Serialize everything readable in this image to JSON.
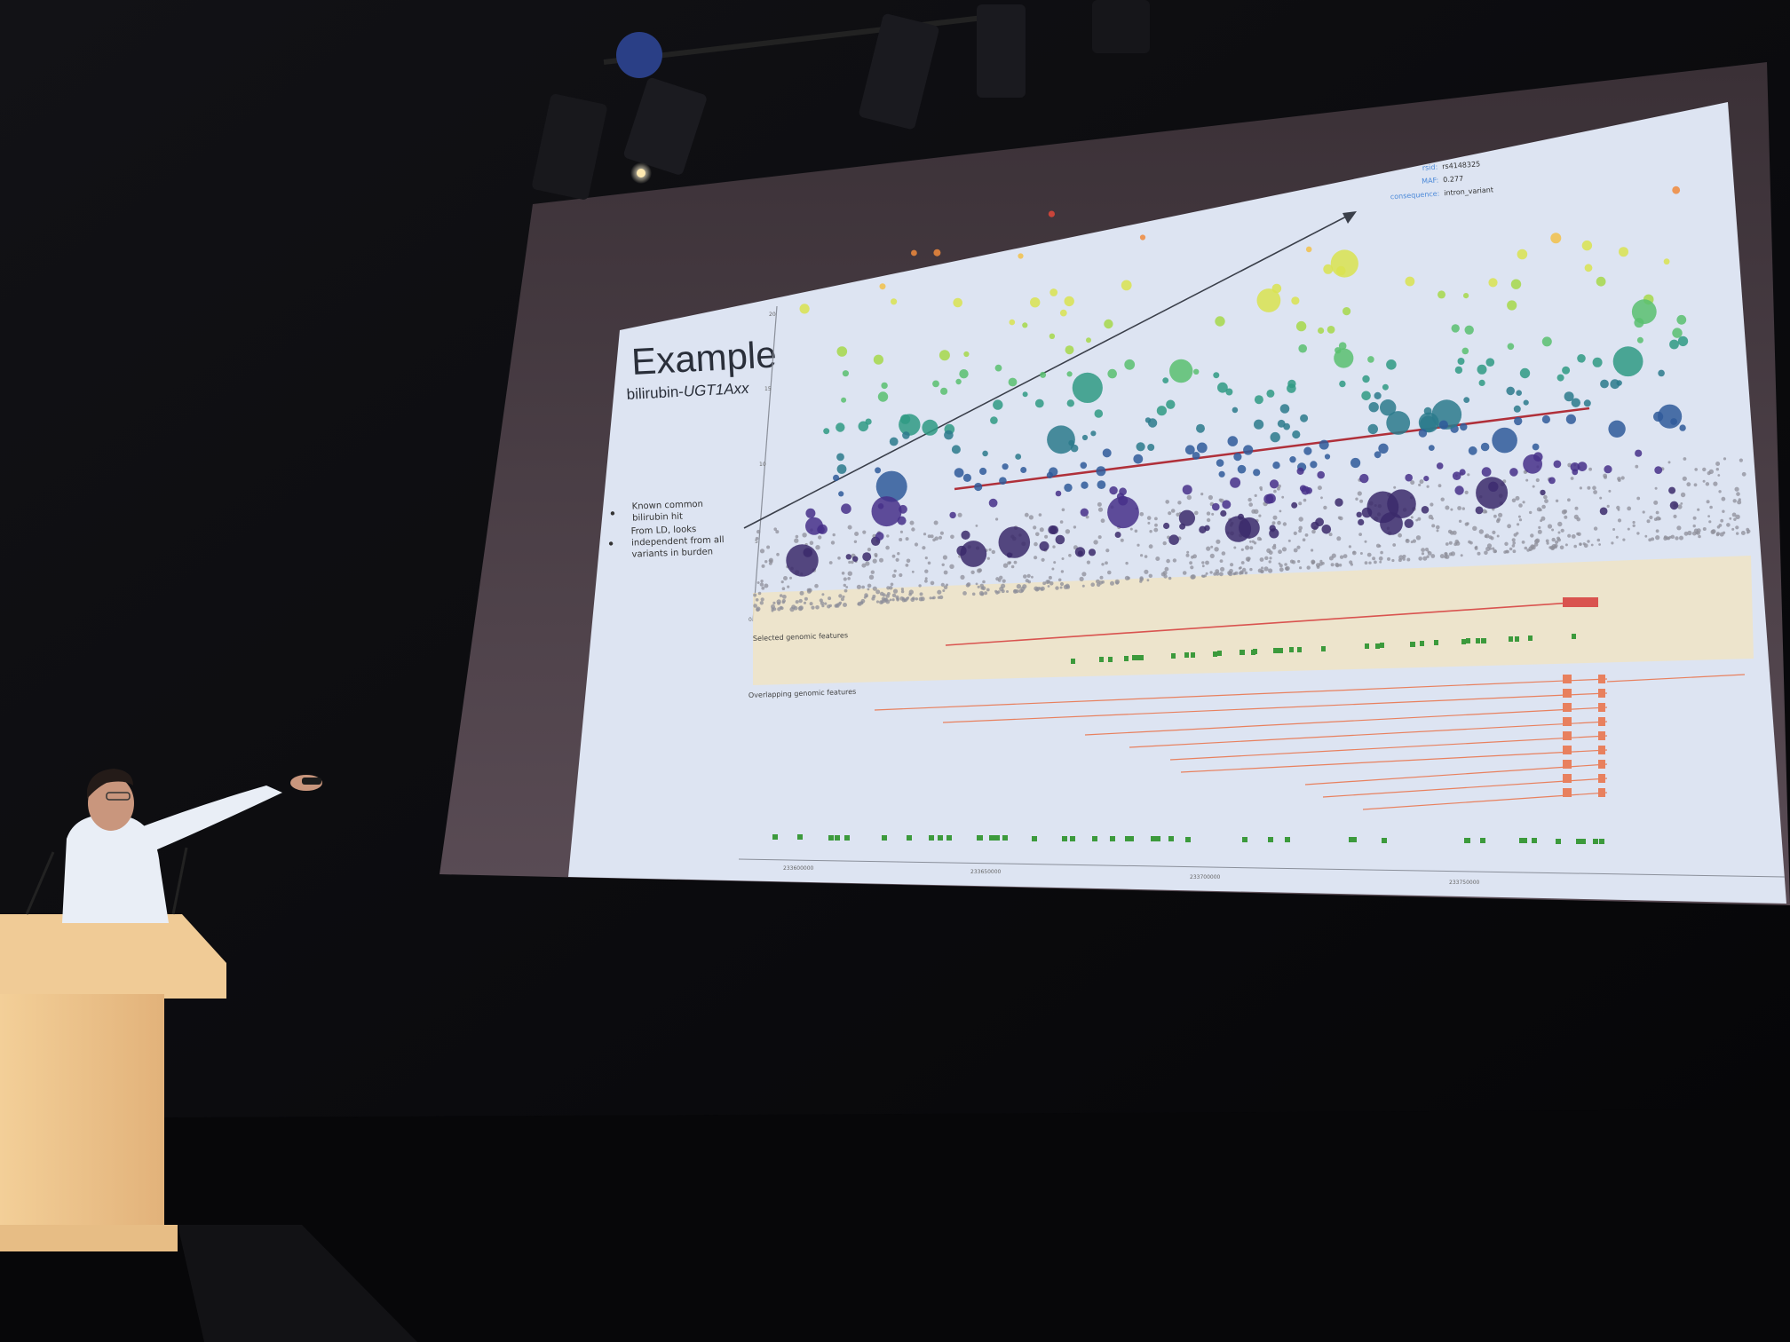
{
  "slide": {
    "title": "Example",
    "subtitle_prefix": "bilirubin-",
    "subtitle_italic": "UGT1Axx",
    "notes": [
      [
        "Known common",
        "bilirubin hit"
      ],
      [
        "From LD, looks",
        "independent from all",
        "variants in burden"
      ]
    ]
  },
  "tooltip": {
    "rows": [
      {
        "key": "rsid:",
        "value": "rs4148325"
      },
      {
        "key": "MAF:",
        "value": "0.277"
      },
      {
        "key": "consequence:",
        "value": "intron_variant"
      }
    ]
  },
  "tracks": {
    "selected_label": "Selected genomic features",
    "overlapping_label": "Overlapping genomic features"
  },
  "axis": {
    "x_ticks": [
      "233600000",
      "233650000",
      "233700000",
      "233750000"
    ],
    "y_ticks": [
      "20",
      "15",
      "10",
      "5",
      "0"
    ]
  },
  "colors": {
    "slide_bg": "#dde4f2",
    "threshold_line": "#b0303a",
    "arrow": "#3a3f4a",
    "gene_orange": "#e8805e",
    "gene_red": "#d9534f",
    "feature_green": "#3c9a3c",
    "highlight_band": "#f2e6c4"
  }
}
